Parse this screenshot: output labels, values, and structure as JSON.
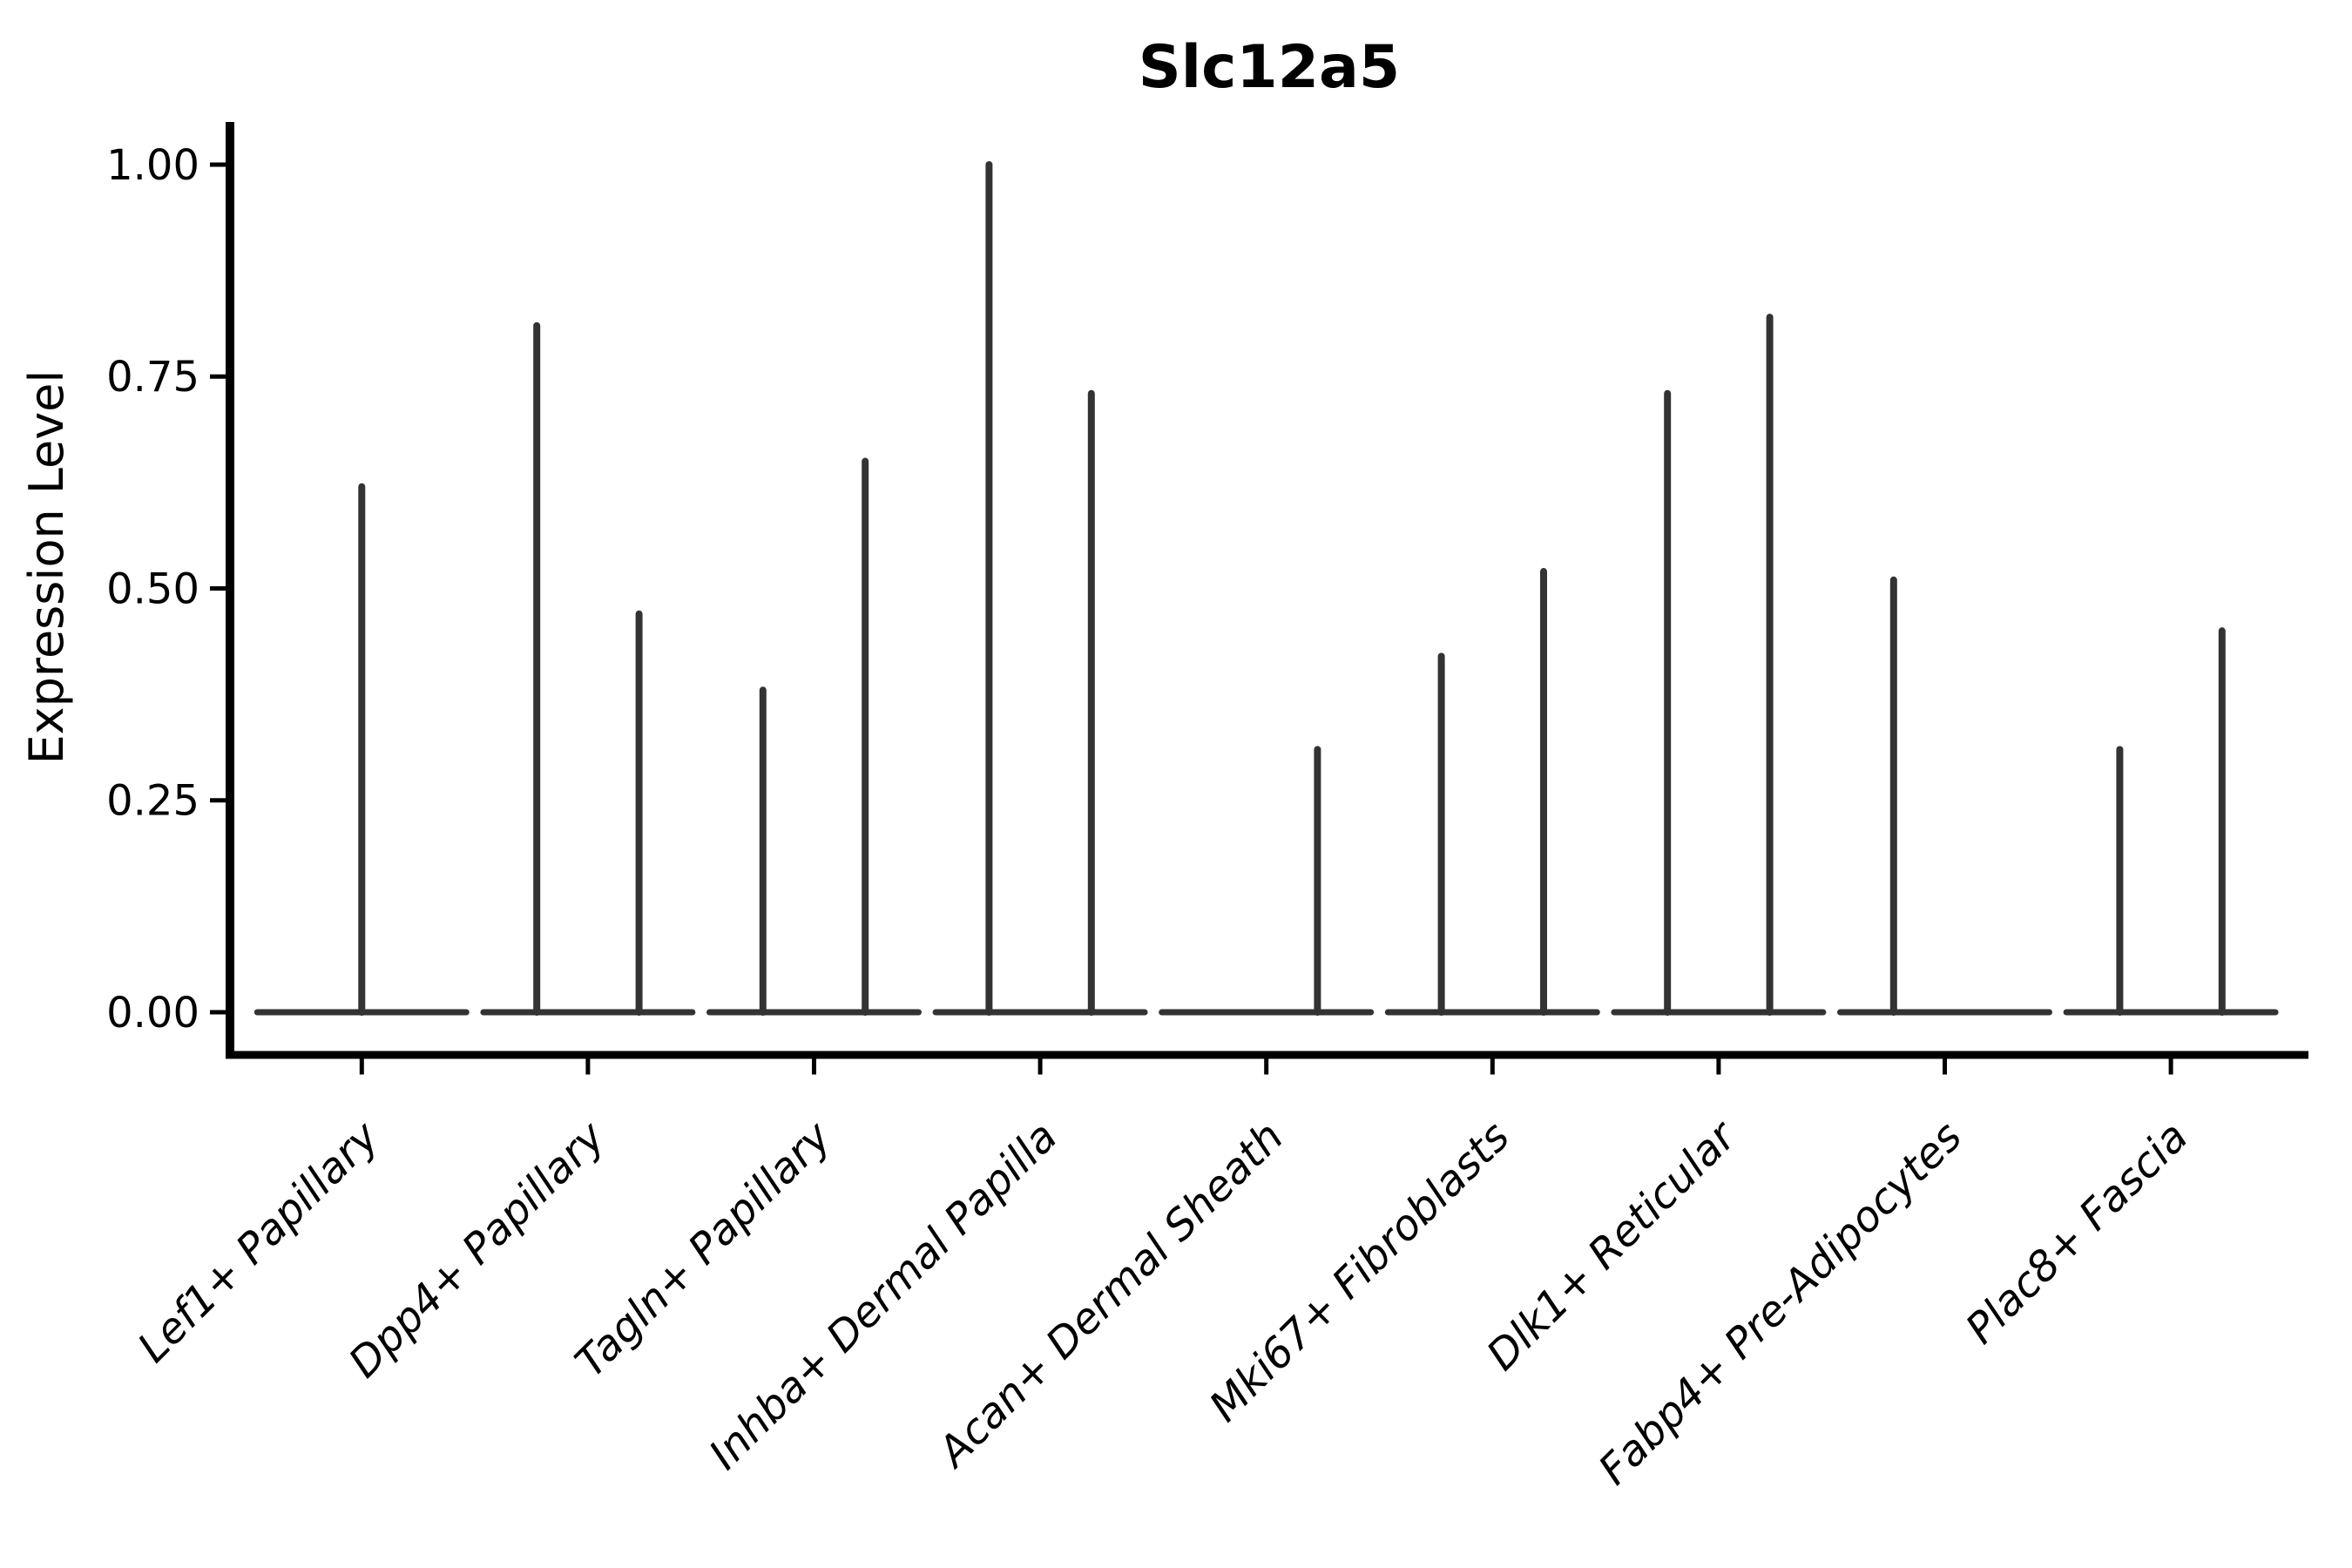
{
  "chart_data": {
    "type": "violin",
    "title": "Slc12a5",
    "ylabel": "Expression Level",
    "xlabel": "",
    "ylim": [
      0,
      1.05
    ],
    "grid": "off",
    "legend": "none",
    "x_tick_label_rotation": 45,
    "x_tick_label_style": "italic",
    "y_ticks": [
      {
        "value": 0.0,
        "label": "0.00"
      },
      {
        "value": 0.25,
        "label": "0.25"
      },
      {
        "value": 0.5,
        "label": "0.50"
      },
      {
        "value": 0.75,
        "label": "0.75"
      },
      {
        "value": 1.0,
        "label": "1.00"
      }
    ],
    "baseline_value": 0.0,
    "categories": [
      {
        "label": "Lef1+ Papillary",
        "violins": [
          {
            "slot": "center",
            "max": 0.62
          }
        ]
      },
      {
        "label": "Dpp4+ Papillary",
        "violins": [
          {
            "slot": "left",
            "max": 0.81
          },
          {
            "slot": "right",
            "max": 0.47
          }
        ]
      },
      {
        "label": "Tagln+ Papillary",
        "violins": [
          {
            "slot": "left",
            "max": 0.38
          },
          {
            "slot": "right",
            "max": 0.65
          }
        ]
      },
      {
        "label": "Inhba+ Dermal Papilla",
        "violins": [
          {
            "slot": "left",
            "max": 1.0
          },
          {
            "slot": "right",
            "max": 0.73
          }
        ]
      },
      {
        "label": "Acan+ Dermal Sheath",
        "violins": [
          {
            "slot": "right",
            "max": 0.31
          }
        ]
      },
      {
        "label": "Mki67+ Fibroblasts",
        "violins": [
          {
            "slot": "left",
            "max": 0.42
          },
          {
            "slot": "right",
            "max": 0.52
          }
        ]
      },
      {
        "label": "Dlk1+ Reticular",
        "violins": [
          {
            "slot": "left",
            "max": 0.73
          },
          {
            "slot": "right",
            "max": 0.82
          }
        ]
      },
      {
        "label": "Fabp4+ Pre-Adipocytes",
        "violins": [
          {
            "slot": "left",
            "max": 0.51
          }
        ]
      },
      {
        "label": "Plac8+ Fascia",
        "violins": [
          {
            "slot": "left",
            "max": 0.31
          },
          {
            "slot": "right",
            "max": 0.45
          }
        ]
      }
    ],
    "colors": {
      "violin": "#333333",
      "axis": "#000000",
      "background": "#ffffff"
    }
  }
}
